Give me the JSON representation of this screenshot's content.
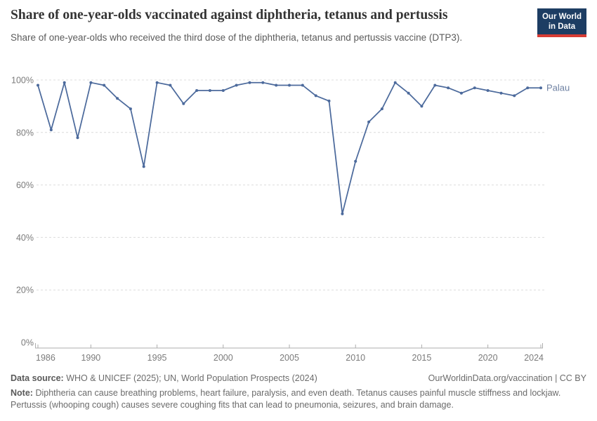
{
  "header": {
    "title": "Share of one-year-olds vaccinated against diphtheria, tetanus and pertussis",
    "subtitle": "Share of one-year-olds who received the third dose of the diphtheria, tetanus and pertussis vaccine (DTP3)."
  },
  "logo": {
    "line1": "Our World",
    "line2": "in Data",
    "bg_color": "#1d3d63",
    "accent_color": "#d73c34"
  },
  "chart_data": {
    "type": "line",
    "title": "Share of one-year-olds vaccinated against diphtheria, tetanus and pertussis",
    "subtitle": "Share of one-year-olds who received the third dose of the diphtheria, tetanus and pertussis vaccine (DTP3).",
    "x": [
      1986,
      1987,
      1988,
      1989,
      1990,
      1991,
      1992,
      1993,
      1994,
      1995,
      1996,
      1997,
      1998,
      1999,
      2000,
      2001,
      2002,
      2003,
      2004,
      2005,
      2006,
      2007,
      2008,
      2009,
      2010,
      2011,
      2012,
      2013,
      2014,
      2015,
      2016,
      2017,
      2018,
      2019,
      2020,
      2021,
      2022,
      2023,
      2024
    ],
    "series": [
      {
        "name": "Palau",
        "color": "#4c6a9c",
        "label_color": "#6e81a2",
        "values": [
          98,
          81,
          99,
          78,
          99,
          98,
          93,
          89,
          67,
          99,
          98,
          91,
          96,
          96,
          96,
          98,
          99,
          99,
          98,
          98,
          98,
          94,
          92,
          49,
          69,
          84,
          89,
          99,
          95,
          90,
          98,
          97,
          95,
          97,
          96,
          95,
          94,
          97,
          97
        ]
      }
    ],
    "ylim": [
      0,
      100
    ],
    "yticks": [
      0,
      20,
      40,
      60,
      80,
      100
    ],
    "ytick_suffix": "%",
    "xticks": [
      1986,
      1990,
      1995,
      2000,
      2005,
      2010,
      2015,
      2020,
      2024
    ],
    "grid": true,
    "legend_position": "end-of-line",
    "grid_color": "#dcdcdc",
    "axis_color": "#adadad",
    "tick_label_color": "#7b7b7b"
  },
  "footer": {
    "source_label": "Data source:",
    "source_text": "WHO & UNICEF (2025); UN, World Population Prospects (2024)",
    "credit": "OurWorldinData.org/vaccination | CC BY",
    "note_label": "Note:",
    "note_text": "Diphtheria can cause breathing problems, heart failure, paralysis, and even death. Tetanus causes painful muscle stiffness and lockjaw. Pertussis (whooping cough) causes severe coughing fits that can lead to pneumonia, seizures, and brain damage."
  }
}
